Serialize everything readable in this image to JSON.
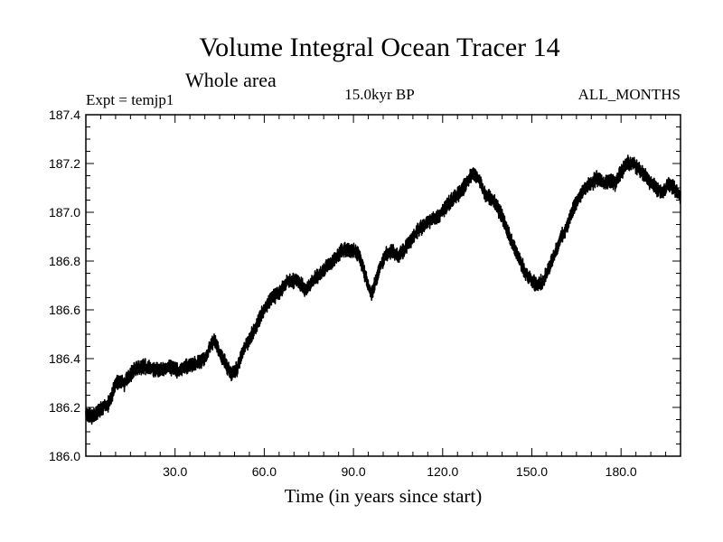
{
  "chart_data": {
    "type": "line",
    "title": "Volume Integral Ocean Tracer 14",
    "subtitle": "Whole area",
    "annotations": {
      "left": "Expt = temjp1",
      "center": "15.0kyr BP",
      "right": "ALL_MONTHS"
    },
    "xlabel": "Time (in years since start)",
    "ylabel": "",
    "xlim": [
      0,
      200
    ],
    "ylim": [
      186.0,
      187.4
    ],
    "x_ticks": [
      30,
      60,
      90,
      120,
      150,
      180
    ],
    "x_tick_labels": [
      "30.0",
      "60.0",
      "90.0",
      "120.0",
      "150.0",
      "180.0"
    ],
    "y_ticks": [
      186.0,
      186.2,
      186.4,
      186.6,
      186.8,
      187.0,
      187.2,
      187.4
    ],
    "y_tick_labels": [
      "186.0",
      "186.2",
      "186.4",
      "186.6",
      "186.8",
      "187.0",
      "187.2",
      "187.4"
    ],
    "grid": false,
    "series_color": "#000000",
    "series": [
      {
        "values_note": "",
        "x": [
          0,
          2,
          4,
          6,
          8,
          10,
          13,
          16,
          19,
          22,
          25,
          28,
          31,
          34,
          37,
          40,
          43,
          45,
          47,
          49,
          51,
          53,
          56,
          59,
          62,
          65,
          68,
          71,
          74,
          77,
          80,
          83,
          86,
          89,
          92,
          94,
          96,
          97,
          99,
          101,
          103,
          105,
          107,
          109,
          112,
          115,
          118,
          121,
          124,
          127,
          130,
          132,
          134,
          136,
          138,
          140,
          142,
          144,
          146,
          148,
          150,
          152,
          154,
          156,
          158,
          160,
          162,
          164,
          166,
          168,
          170,
          172,
          174,
          176,
          178,
          180,
          182,
          184,
          186,
          188,
          190,
          192,
          194,
          196,
          198,
          200
        ],
        "y": [
          186.17,
          186.16,
          186.18,
          186.2,
          186.22,
          186.3,
          186.3,
          186.35,
          186.37,
          186.36,
          186.35,
          186.37,
          186.35,
          186.37,
          186.38,
          186.4,
          186.48,
          186.42,
          186.38,
          186.34,
          186.36,
          186.44,
          186.5,
          186.58,
          186.64,
          186.67,
          186.72,
          186.72,
          186.68,
          186.73,
          186.76,
          186.8,
          186.84,
          186.85,
          186.82,
          186.74,
          186.66,
          186.7,
          186.78,
          186.83,
          186.84,
          186.82,
          186.85,
          186.88,
          186.93,
          186.96,
          186.98,
          187.02,
          187.06,
          187.1,
          187.16,
          187.14,
          187.08,
          187.06,
          187.03,
          186.98,
          186.92,
          186.86,
          186.8,
          186.75,
          186.72,
          186.7,
          186.72,
          186.78,
          186.84,
          186.9,
          186.95,
          187.02,
          187.06,
          187.1,
          187.12,
          187.14,
          187.12,
          187.13,
          187.12,
          187.16,
          187.2,
          187.2,
          187.18,
          187.15,
          187.12,
          187.1,
          187.08,
          187.12,
          187.1,
          187.06
        ],
        "noise_amplitude": 0.03
      }
    ]
  }
}
